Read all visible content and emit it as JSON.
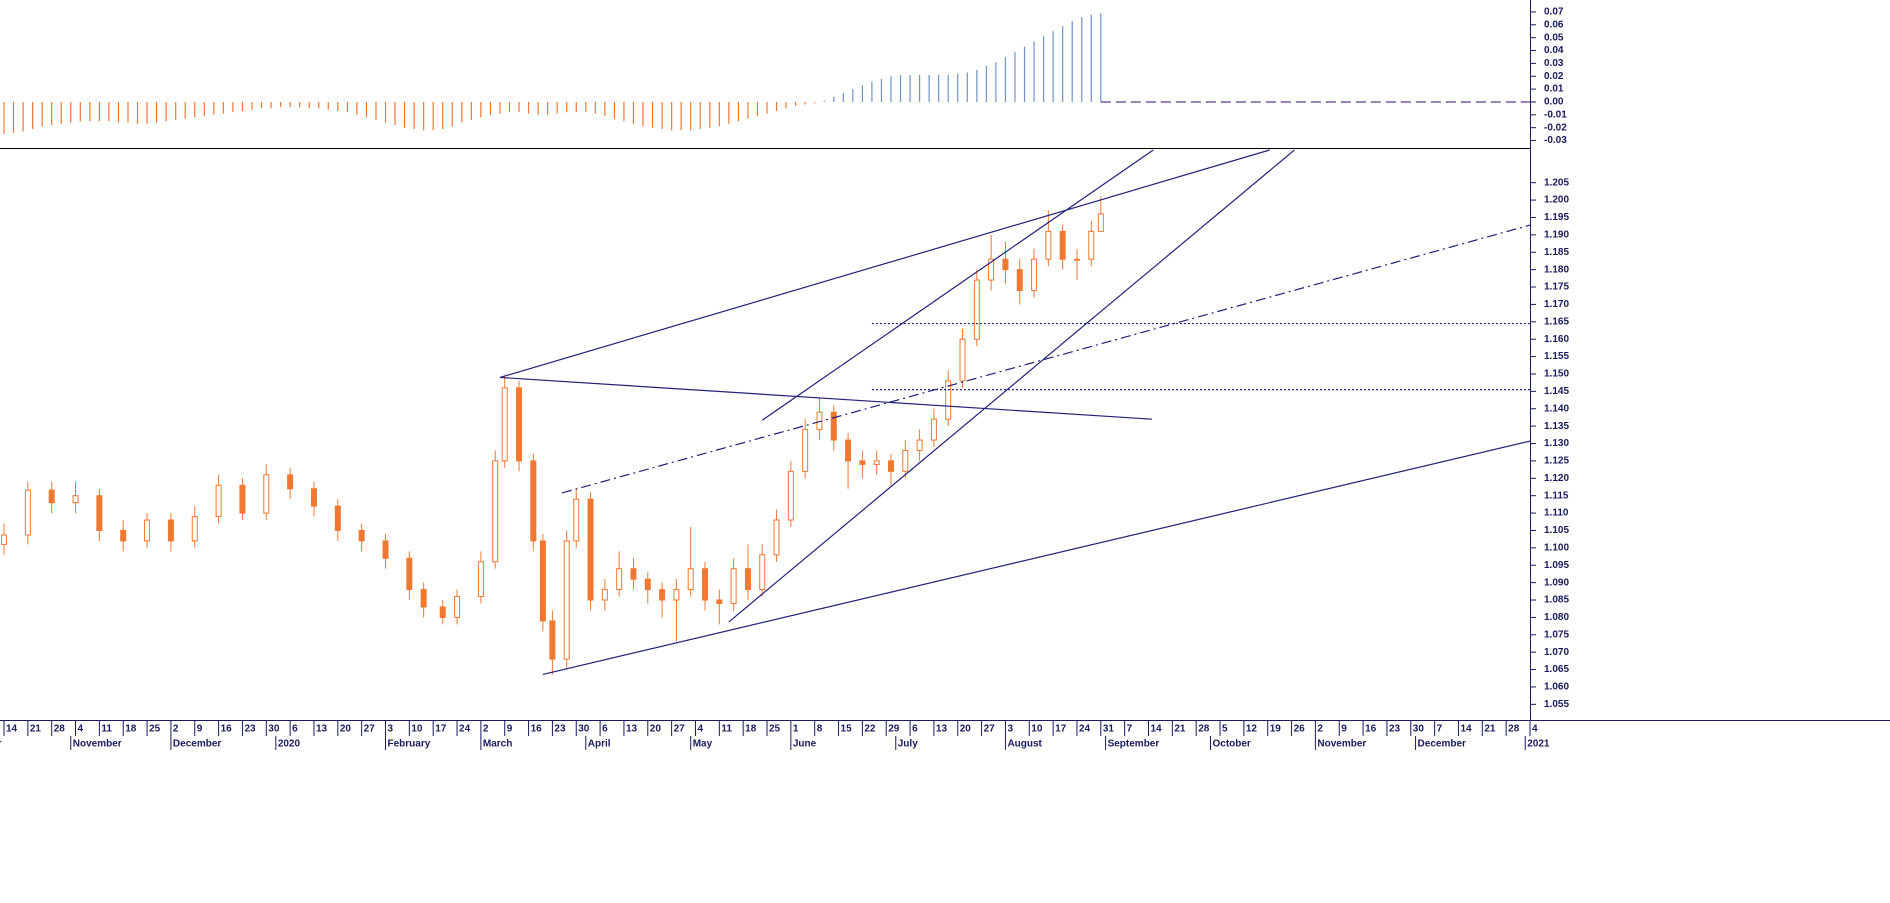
{
  "chart_data": [
    {
      "type": "bar",
      "xlim": [
        -0.84,
        320
      ],
      "ylim": [
        -0.0358,
        0.0793
      ],
      "yticks": [
        -0.03,
        -0.02,
        -0.01,
        {
          "value": 0,
          "label": "0.00"
        },
        0.01,
        0.02,
        0.03,
        0.04,
        0.05,
        0.06,
        0.07
      ],
      "color_negative": "#f07830",
      "color_positive": "#6f93c4",
      "zero_line_color": "#5a3a8c",
      "x": [
        0,
        2,
        4,
        6,
        8,
        10,
        12,
        14,
        16,
        18,
        20,
        22,
        24,
        26,
        28,
        30,
        32,
        34,
        36,
        38,
        40,
        42,
        44,
        46,
        48,
        50,
        52,
        54,
        56,
        58,
        60,
        62,
        64,
        66,
        68,
        70,
        72,
        74,
        76,
        78,
        80,
        82,
        84,
        86,
        88,
        90,
        92,
        94,
        96,
        98,
        100,
        102,
        104,
        106,
        108,
        110,
        112,
        114,
        116,
        118,
        120,
        122,
        124,
        126,
        128,
        130,
        132,
        134,
        136,
        138,
        140,
        142,
        144,
        146,
        148,
        150,
        152,
        154,
        156,
        158,
        160,
        162,
        164,
        166,
        168,
        170,
        172,
        174,
        176,
        178,
        180,
        182,
        184,
        186,
        188,
        190,
        192,
        194,
        196,
        198,
        200,
        202,
        204,
        206,
        208,
        210,
        212,
        214,
        216,
        218,
        220,
        222,
        224,
        226,
        228,
        230
      ],
      "values": [
        -0.025,
        -0.024,
        -0.023,
        -0.021,
        -0.019,
        -0.018,
        -0.017,
        -0.016,
        -0.015,
        -0.015,
        -0.015,
        -0.015,
        -0.016,
        -0.016,
        -0.017,
        -0.017,
        -0.016,
        -0.015,
        -0.014,
        -0.013,
        -0.012,
        -0.011,
        -0.01,
        -0.009,
        -0.008,
        -0.007,
        -0.006,
        -0.005,
        -0.005,
        -0.004,
        -0.004,
        -0.004,
        -0.005,
        -0.005,
        -0.006,
        -0.007,
        -0.008,
        -0.01,
        -0.012,
        -0.014,
        -0.016,
        -0.018,
        -0.02,
        -0.021,
        -0.022,
        -0.022,
        -0.021,
        -0.019,
        -0.016,
        -0.014,
        -0.012,
        -0.01,
        -0.009,
        -0.008,
        -0.008,
        -0.009,
        -0.01,
        -0.01,
        -0.009,
        -0.008,
        -0.008,
        -0.008,
        -0.009,
        -0.011,
        -0.013,
        -0.015,
        -0.017,
        -0.019,
        -0.02,
        -0.021,
        -0.022,
        -0.022,
        -0.022,
        -0.021,
        -0.02,
        -0.019,
        -0.017,
        -0.015,
        -0.013,
        -0.011,
        -0.009,
        -0.007,
        -0.005,
        -0.003,
        -0.002,
        -0.001,
        0.001,
        0.004,
        0.007,
        0.01,
        0.013,
        0.016,
        0.018,
        0.02,
        0.021,
        0.021,
        0.021,
        0.021,
        0.021,
        0.021,
        0.022,
        0.023,
        0.025,
        0.028,
        0.031,
        0.035,
        0.039,
        0.043,
        0.047,
        0.051,
        0.055,
        0.059,
        0.063,
        0.066,
        0.068,
        0.069
      ]
    },
    {
      "type": "candlestick",
      "xlim": [
        -0.84,
        320
      ],
      "ylim": [
        1.0505,
        1.2144
      ],
      "color": "#f07830",
      "line_color": "#22227a",
      "yticks": [
        1.055,
        {
          "value": 1.06,
          "label": "1.060"
        },
        1.065,
        {
          "value": 1.07,
          "label": "1.070"
        },
        1.075,
        {
          "value": 1.08,
          "label": "1.080"
        },
        1.085,
        {
          "value": 1.09,
          "label": "1.090"
        },
        1.095,
        {
          "value": 1.1,
          "label": "1.100"
        },
        1.105,
        {
          "value": 1.11,
          "label": "1.110"
        },
        1.115,
        {
          "value": 1.12,
          "label": "1.120"
        },
        1.125,
        {
          "value": 1.13,
          "label": "1.130"
        },
        1.135,
        {
          "value": 1.14,
          "label": "1.140"
        },
        1.145,
        {
          "value": 1.15,
          "label": "1.150"
        },
        1.155,
        {
          "value": 1.16,
          "label": "1.160"
        },
        1.165,
        {
          "value": 1.17,
          "label": "1.170"
        },
        1.175,
        {
          "value": 1.18,
          "label": "1.180"
        },
        1.185,
        {
          "value": 1.19,
          "label": "1.190"
        },
        1.195,
        {
          "value": 1.2,
          "label": "1.200"
        },
        1.205
      ],
      "xticks": [
        {
          "value": 0,
          "label": "14"
        },
        {
          "value": 5,
          "label": "21"
        },
        {
          "value": 10,
          "label": "28"
        },
        {
          "value": 15,
          "label": "4"
        },
        {
          "value": 20,
          "label": "11"
        },
        {
          "value": 25,
          "label": "18"
        },
        {
          "value": 30,
          "label": "25"
        },
        {
          "value": 35,
          "label": "2"
        },
        {
          "value": 40,
          "label": "9"
        },
        {
          "value": 45,
          "label": "16"
        },
        {
          "value": 50,
          "label": "23"
        },
        {
          "value": 55,
          "label": "30"
        },
        {
          "value": 60,
          "label": "6"
        },
        {
          "value": 65,
          "label": "13"
        },
        {
          "value": 70,
          "label": "20"
        },
        {
          "value": 75,
          "label": "27"
        },
        {
          "value": 80,
          "label": "3"
        },
        {
          "value": 85,
          "label": "10"
        },
        {
          "value": 90,
          "label": "17"
        },
        {
          "value": 95,
          "label": "24"
        },
        {
          "value": 100,
          "label": "2"
        },
        {
          "value": 105,
          "label": "9"
        },
        {
          "value": 110,
          "label": "16"
        },
        {
          "value": 115,
          "label": "23"
        },
        {
          "value": 120,
          "label": "30"
        },
        {
          "value": 125,
          "label": "6"
        },
        {
          "value": 130,
          "label": "13"
        },
        {
          "value": 135,
          "label": "20"
        },
        {
          "value": 140,
          "label": "27"
        },
        {
          "value": 145,
          "label": "4"
        },
        {
          "value": 150,
          "label": "11"
        },
        {
          "value": 155,
          "label": "18"
        },
        {
          "value": 160,
          "label": "25"
        },
        {
          "value": 165,
          "label": "1"
        },
        {
          "value": 170,
          "label": "8"
        },
        {
          "value": 175,
          "label": "15"
        },
        {
          "value": 180,
          "label": "22"
        },
        {
          "value": 185,
          "label": "29"
        },
        {
          "value": 190,
          "label": "6"
        },
        {
          "value": 195,
          "label": "13"
        },
        {
          "value": 200,
          "label": "20"
        },
        {
          "value": 205,
          "label": "27"
        },
        {
          "value": 210,
          "label": "3"
        },
        {
          "value": 215,
          "label": "10"
        },
        {
          "value": 220,
          "label": "17"
        },
        {
          "value": 225,
          "label": "24"
        },
        {
          "value": 230,
          "label": "31"
        },
        {
          "value": 235,
          "label": "7"
        },
        {
          "value": 240,
          "label": "14"
        },
        {
          "value": 245,
          "label": "21"
        },
        {
          "value": 250,
          "label": "28"
        },
        {
          "value": 255,
          "label": "5"
        },
        {
          "value": 260,
          "label": "12"
        },
        {
          "value": 265,
          "label": "19"
        },
        {
          "value": 270,
          "label": "26"
        },
        {
          "value": 275,
          "label": "2"
        },
        {
          "value": 280,
          "label": "9"
        },
        {
          "value": 285,
          "label": "16"
        },
        {
          "value": 290,
          "label": "23"
        },
        {
          "value": 295,
          "label": "30"
        },
        {
          "value": 300,
          "label": "7"
        },
        {
          "value": 305,
          "label": "14"
        },
        {
          "value": 310,
          "label": "21"
        },
        {
          "value": 315,
          "label": "28"
        },
        {
          "value": 320,
          "label": "4"
        }
      ],
      "month_labels": [
        {
          "value": -9,
          "label": "October"
        },
        {
          "value": 14,
          "label": "November"
        },
        {
          "value": 35,
          "label": "December"
        },
        {
          "value": 57,
          "label": "2020"
        },
        {
          "value": 80,
          "label": "February"
        },
        {
          "value": 100,
          "label": "March"
        },
        {
          "value": 122,
          "label": "April"
        },
        {
          "value": 144,
          "label": "May"
        },
        {
          "value": 165,
          "label": "June"
        },
        {
          "value": 187,
          "label": "July"
        },
        {
          "value": 210,
          "label": "August"
        },
        {
          "value": 231,
          "label": "September"
        },
        {
          "value": 253,
          "label": "October"
        },
        {
          "value": 275,
          "label": "November"
        },
        {
          "value": 296,
          "label": "December"
        },
        {
          "value": 319,
          "label": "2021"
        }
      ],
      "x": [
        0,
        5,
        10,
        15,
        20,
        25,
        30,
        35,
        40,
        45,
        50,
        55,
        60,
        65,
        70,
        75,
        80,
        85,
        88,
        92,
        95,
        100,
        103,
        105,
        108,
        111,
        113,
        115,
        118,
        120,
        123,
        126,
        129,
        132,
        135,
        138,
        141,
        144,
        147,
        150,
        153,
        156,
        159,
        162,
        165,
        168,
        171,
        174,
        177,
        180,
        183,
        186,
        189,
        192,
        195,
        198,
        201,
        204,
        207,
        210,
        213,
        216,
        219,
        222,
        225,
        228,
        230
      ],
      "open": [
        1.101,
        1.1037,
        1.1166,
        1.113,
        1.115,
        1.105,
        1.102,
        1.108,
        1.102,
        1.109,
        1.118,
        1.11,
        1.121,
        1.117,
        1.112,
        1.105,
        1.102,
        1.097,
        1.088,
        1.083,
        1.08,
        1.086,
        1.096,
        1.125,
        1.146,
        1.125,
        1.102,
        1.079,
        1.068,
        1.102,
        1.114,
        1.085,
        1.088,
        1.094,
        1.091,
        1.088,
        1.085,
        1.088,
        1.094,
        1.085,
        1.084,
        1.094,
        1.088,
        1.098,
        1.108,
        1.122,
        1.134,
        1.139,
        1.131,
        1.125,
        1.124,
        1.125,
        1.122,
        1.128,
        1.131,
        1.137,
        1.148,
        1.16,
        1.177,
        1.183,
        1.18,
        1.174,
        1.183,
        1.191,
        1.183,
        1.183,
        1.191
      ],
      "high": [
        1.107,
        1.119,
        1.119,
        1.119,
        1.117,
        1.108,
        1.11,
        1.11,
        1.112,
        1.121,
        1.12,
        1.124,
        1.123,
        1.119,
        1.114,
        1.107,
        1.104,
        1.099,
        1.09,
        1.085,
        1.088,
        1.099,
        1.128,
        1.1495,
        1.148,
        1.127,
        1.104,
        1.082,
        1.105,
        1.117,
        1.116,
        1.091,
        1.099,
        1.097,
        1.093,
        1.09,
        1.091,
        1.106,
        1.096,
        1.088,
        1.097,
        1.101,
        1.101,
        1.111,
        1.125,
        1.137,
        1.143,
        1.141,
        1.133,
        1.128,
        1.128,
        1.127,
        1.131,
        1.134,
        1.14,
        1.151,
        1.163,
        1.18,
        1.19,
        1.188,
        1.183,
        1.186,
        1.197,
        1.193,
        1.186,
        1.194,
        1.2011
      ],
      "low": [
        1.098,
        1.101,
        1.11,
        1.11,
        1.102,
        1.099,
        1.1,
        1.099,
        1.1,
        1.107,
        1.108,
        1.108,
        1.114,
        1.109,
        1.102,
        1.099,
        1.094,
        1.085,
        1.08,
        1.078,
        1.078,
        1.084,
        1.094,
        1.123,
        1.122,
        1.099,
        1.076,
        1.0636,
        1.065,
        1.1,
        1.082,
        1.082,
        1.086,
        1.088,
        1.084,
        1.08,
        1.073,
        1.086,
        1.082,
        1.078,
        1.082,
        1.085,
        1.086,
        1.096,
        1.106,
        1.12,
        1.131,
        1.128,
        1.117,
        1.12,
        1.121,
        1.118,
        1.12,
        1.125,
        1.129,
        1.135,
        1.146,
        1.158,
        1.174,
        1.176,
        1.17,
        1.172,
        1.181,
        1.18,
        1.177,
        1.181,
        1.192
      ],
      "close": [
        1.1037,
        1.1166,
        1.113,
        1.115,
        1.105,
        1.102,
        1.108,
        1.102,
        1.109,
        1.118,
        1.11,
        1.121,
        1.117,
        1.112,
        1.105,
        1.102,
        1.097,
        1.088,
        1.083,
        1.08,
        1.086,
        1.096,
        1.125,
        1.146,
        1.125,
        1.102,
        1.079,
        1.068,
        1.102,
        1.114,
        1.085,
        1.088,
        1.094,
        1.091,
        1.088,
        1.085,
        1.088,
        1.094,
        1.085,
        1.084,
        1.094,
        1.088,
        1.098,
        1.108,
        1.122,
        1.134,
        1.139,
        1.131,
        1.125,
        1.124,
        1.125,
        1.122,
        1.128,
        1.131,
        1.137,
        1.148,
        1.16,
        1.177,
        1.183,
        1.18,
        1.174,
        1.183,
        1.191,
        1.183,
        1.183,
        1.191,
        1.196
      ],
      "trendlines": [
        {
          "style": "solid",
          "x": [
            104,
            265.4
          ],
          "y": [
            1.149,
            1.2144
          ]
        },
        {
          "style": "solid",
          "x": [
            113,
            320
          ],
          "y": [
            1.0636,
            1.1307
          ]
        },
        {
          "style": "solid",
          "x": [
            104,
            240.7
          ],
          "y": [
            1.149,
            1.137
          ]
        },
        {
          "style": "solid",
          "x": [
            159,
            241
          ],
          "y": [
            1.1367,
            1.2144
          ]
        },
        {
          "style": "solid",
          "x": [
            152,
            270.6
          ],
          "y": [
            1.0787,
            1.2144
          ]
        },
        {
          "style": "dashdot",
          "x": [
            117,
            320
          ],
          "y": [
            1.1158,
            1.1928
          ]
        },
        {
          "style": "dotted",
          "x": [
            182,
            320
          ],
          "y": [
            1.1645,
            1.1645
          ]
        },
        {
          "style": "dotted",
          "x": [
            182,
            320
          ],
          "y": [
            1.1455,
            1.1455
          ]
        }
      ]
    }
  ]
}
